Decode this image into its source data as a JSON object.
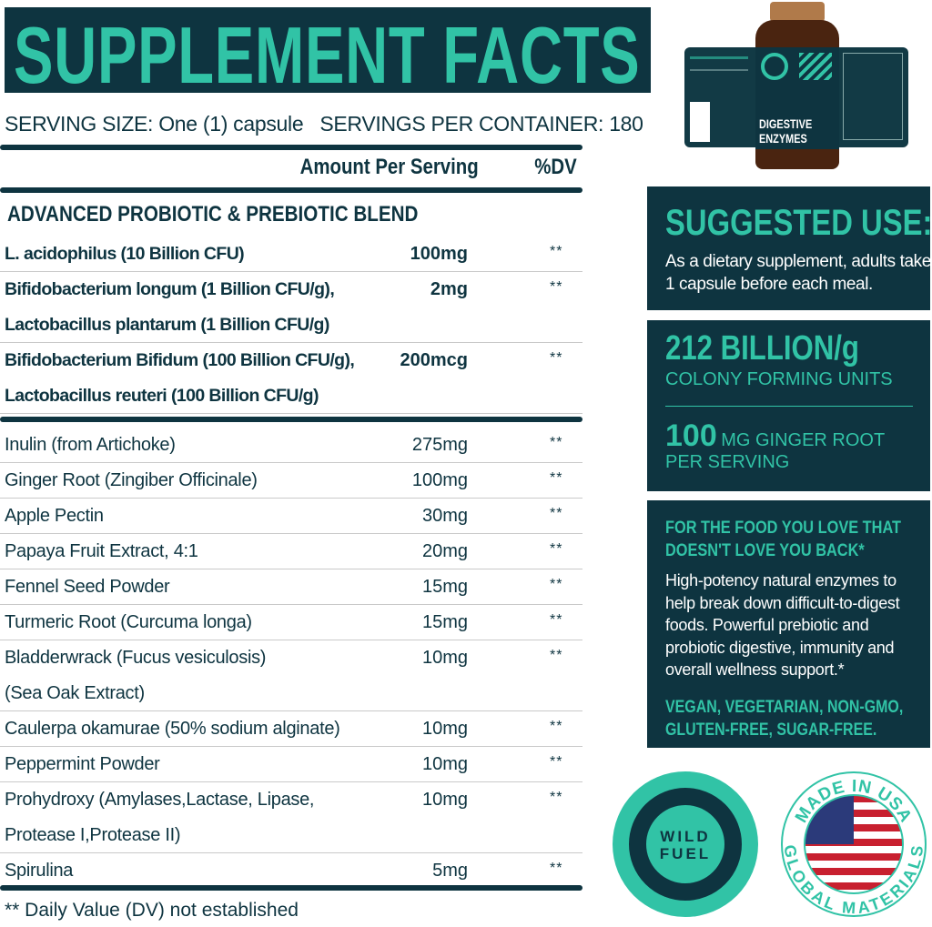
{
  "title": "SUPPLEMENT FACTS",
  "serving_size": "SERVING SIZE: One (1) capsule",
  "servings_per_container": "SERVINGS PER CONTAINER: 180",
  "header": {
    "amount": "Amount Per Serving",
    "dv": "%DV"
  },
  "blend": {
    "title": "ADVANCED PROBIOTIC & PREBIOTIC BLEND",
    "rows": [
      {
        "name": [
          "L. acidophilus (10 Billion CFU)"
        ],
        "amount": "100mg",
        "dv": "**"
      },
      {
        "name": [
          "Bifidobacterium longum (1 Billion CFU/g),",
          "Lactobacillus plantarum (1 Billion CFU/g)"
        ],
        "amount": "2mg",
        "dv": "**"
      },
      {
        "name": [
          "Bifidobacterium Bifidum (100 Billion CFU/g),",
          "Lactobacillus reuteri (100 Billion CFU/g)"
        ],
        "amount": "200mcg",
        "dv": "**"
      }
    ]
  },
  "ingredients": [
    {
      "name": [
        "Inulin (from Artichoke)"
      ],
      "amount": "275mg",
      "dv": "**"
    },
    {
      "name": [
        "Ginger Root (Zingiber Officinale)"
      ],
      "amount": "100mg",
      "dv": "**"
    },
    {
      "name": [
        "Apple Pectin"
      ],
      "amount": "30mg",
      "dv": "**"
    },
    {
      "name": [
        "Papaya Fruit Extract, 4:1"
      ],
      "amount": "20mg",
      "dv": "**"
    },
    {
      "name": [
        "Fennel Seed Powder"
      ],
      "amount": "15mg",
      "dv": "**"
    },
    {
      "name": [
        "Turmeric Root (Curcuma longa)"
      ],
      "amount": "15mg",
      "dv": "**"
    },
    {
      "name": [
        "Bladderwrack (Fucus vesiculosis)",
        "(Sea Oak Extract)"
      ],
      "amount": "10mg",
      "dv": "**"
    },
    {
      "name": [
        "Caulerpa okamurae (50% sodium alginate)"
      ],
      "amount": "10mg",
      "dv": "**"
    },
    {
      "name": [
        "Peppermint Powder"
      ],
      "amount": "10mg",
      "dv": "**"
    },
    {
      "name": [
        "Prohydroxy (Amylases,Lactase, Lipase,",
        "Protease I,Protease II)"
      ],
      "amount": "10mg",
      "dv": "**"
    },
    {
      "name": [
        "Spirulina"
      ],
      "amount": "5mg",
      "dv": "**"
    }
  ],
  "footnote": "** Daily Value (DV) not established",
  "suggested_use": {
    "title": "SUGGESTED USE:",
    "text": "As a dietary supplement, adults take 1 capsule before each meal."
  },
  "stats": {
    "cfu_value": "212 BILLION/g",
    "cfu_label": "COLONY FORMING UNITS",
    "ginger_value": "100",
    "ginger_label": "MG GINGER ROOT",
    "ginger_label2": "PER SERVING"
  },
  "promo": {
    "headline": "FOR THE FOOD YOU LOVE THAT DOESN'T LOVE YOU BACK*",
    "body": "High-potency natural enzymes to help break down difficult-to-digest foods. Powerful prebiotic and probiotic digestive, immunity and overall wellness support.*",
    "claims": "VEGAN, VEGETARIAN, NON-GMO, GLUTEN-FREE, SUGAR-FREE."
  },
  "bottle": {
    "line1": "DIGESTIVE",
    "line2": "ENZYMES",
    "brand": "WILD FUEL"
  },
  "logo": {
    "brand_line1": "WILD",
    "brand_line2": "FUEL",
    "badge_top": "MADE IN USA",
    "badge_bottom": "GLOBAL MATERIALS"
  },
  "colors": {
    "dark": "#0e3440",
    "teal": "#31c3a6"
  }
}
